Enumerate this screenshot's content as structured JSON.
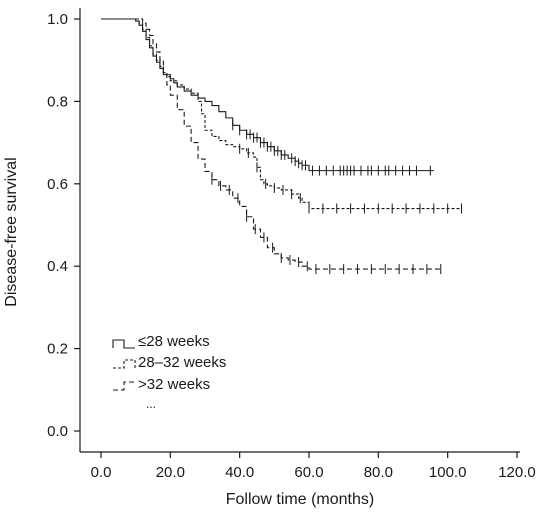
{
  "chart_data": {
    "type": "line",
    "subtype": "kaplan-meier step curves",
    "xlabel": "Follow time (months)",
    "ylabel": "Disease-free survival",
    "xlim": [
      0,
      120
    ],
    "ylim": [
      0,
      1.0
    ],
    "x_ticks": [
      "0.0",
      "20.0",
      "40.0",
      "60.0",
      "80.0",
      "100.0",
      "120.0"
    ],
    "y_ticks": [
      "0.0",
      "0.2",
      "0.4",
      "0.6",
      "0.8",
      "1.0"
    ],
    "grid": false,
    "legend_position": "lower-left",
    "legend_extra": "...",
    "series": [
      {
        "name": "≤28 weeks",
        "line_style": "solid",
        "x": [
          0,
          9,
          10,
          11,
          12,
          13,
          14,
          15,
          16,
          17,
          18,
          20,
          21,
          22,
          24,
          26,
          28,
          30,
          32,
          34,
          36,
          38,
          40,
          42,
          44,
          46,
          48,
          50,
          52,
          54,
          56,
          57,
          58,
          60,
          96
        ],
        "y": [
          1.0,
          1.0,
          0.995,
          0.985,
          0.97,
          0.95,
          0.93,
          0.91,
          0.895,
          0.88,
          0.865,
          0.855,
          0.845,
          0.835,
          0.825,
          0.815,
          0.808,
          0.8,
          0.79,
          0.775,
          0.76,
          0.742,
          0.73,
          0.72,
          0.712,
          0.7,
          0.69,
          0.68,
          0.67,
          0.662,
          0.655,
          0.65,
          0.645,
          0.632,
          0.632
        ],
        "censored_x": [
          38,
          40,
          42,
          43,
          44,
          45,
          46,
          47,
          48,
          49,
          50,
          51,
          52,
          53,
          55,
          56,
          57,
          58,
          59,
          61,
          63,
          65,
          67,
          69,
          70,
          71,
          72,
          73,
          75,
          77,
          78,
          80,
          82,
          83,
          85,
          87,
          89,
          91,
          95
        ]
      },
      {
        "name": "28–32 weeks",
        "line_style": "dashed",
        "x": [
          0,
          10,
          11,
          12,
          13,
          14,
          15,
          16,
          17,
          18,
          19,
          20,
          22,
          24,
          26,
          28,
          29,
          30,
          32,
          34,
          36,
          38,
          40,
          42,
          44,
          45,
          46,
          47,
          48,
          50,
          52,
          55,
          57,
          58,
          60,
          104
        ],
        "y": [
          1.0,
          1.0,
          0.99,
          0.975,
          0.955,
          0.935,
          0.915,
          0.9,
          0.885,
          0.87,
          0.86,
          0.85,
          0.84,
          0.83,
          0.82,
          0.8,
          0.77,
          0.73,
          0.715,
          0.705,
          0.695,
          0.69,
          0.685,
          0.675,
          0.665,
          0.64,
          0.61,
          0.6,
          0.595,
          0.59,
          0.585,
          0.575,
          0.565,
          0.555,
          0.54,
          0.54
        ]
      },
      {
        "name": ">32 weeks",
        "line_style": "dashed",
        "x": [
          0,
          11,
          12,
          13,
          14,
          15,
          16,
          17,
          18,
          19,
          20,
          22,
          24,
          26,
          28,
          30,
          32,
          34,
          36,
          38,
          40,
          42,
          44,
          46,
          48,
          50,
          52,
          54,
          56,
          58,
          60,
          98
        ],
        "y": [
          1.0,
          1.0,
          0.99,
          0.975,
          0.96,
          0.94,
          0.92,
          0.9,
          0.87,
          0.84,
          0.815,
          0.78,
          0.74,
          0.7,
          0.66,
          0.63,
          0.61,
          0.595,
          0.585,
          0.565,
          0.545,
          0.52,
          0.49,
          0.47,
          0.445,
          0.43,
          0.42,
          0.415,
          0.41,
          0.4,
          0.393,
          0.393
        ]
      }
    ]
  }
}
